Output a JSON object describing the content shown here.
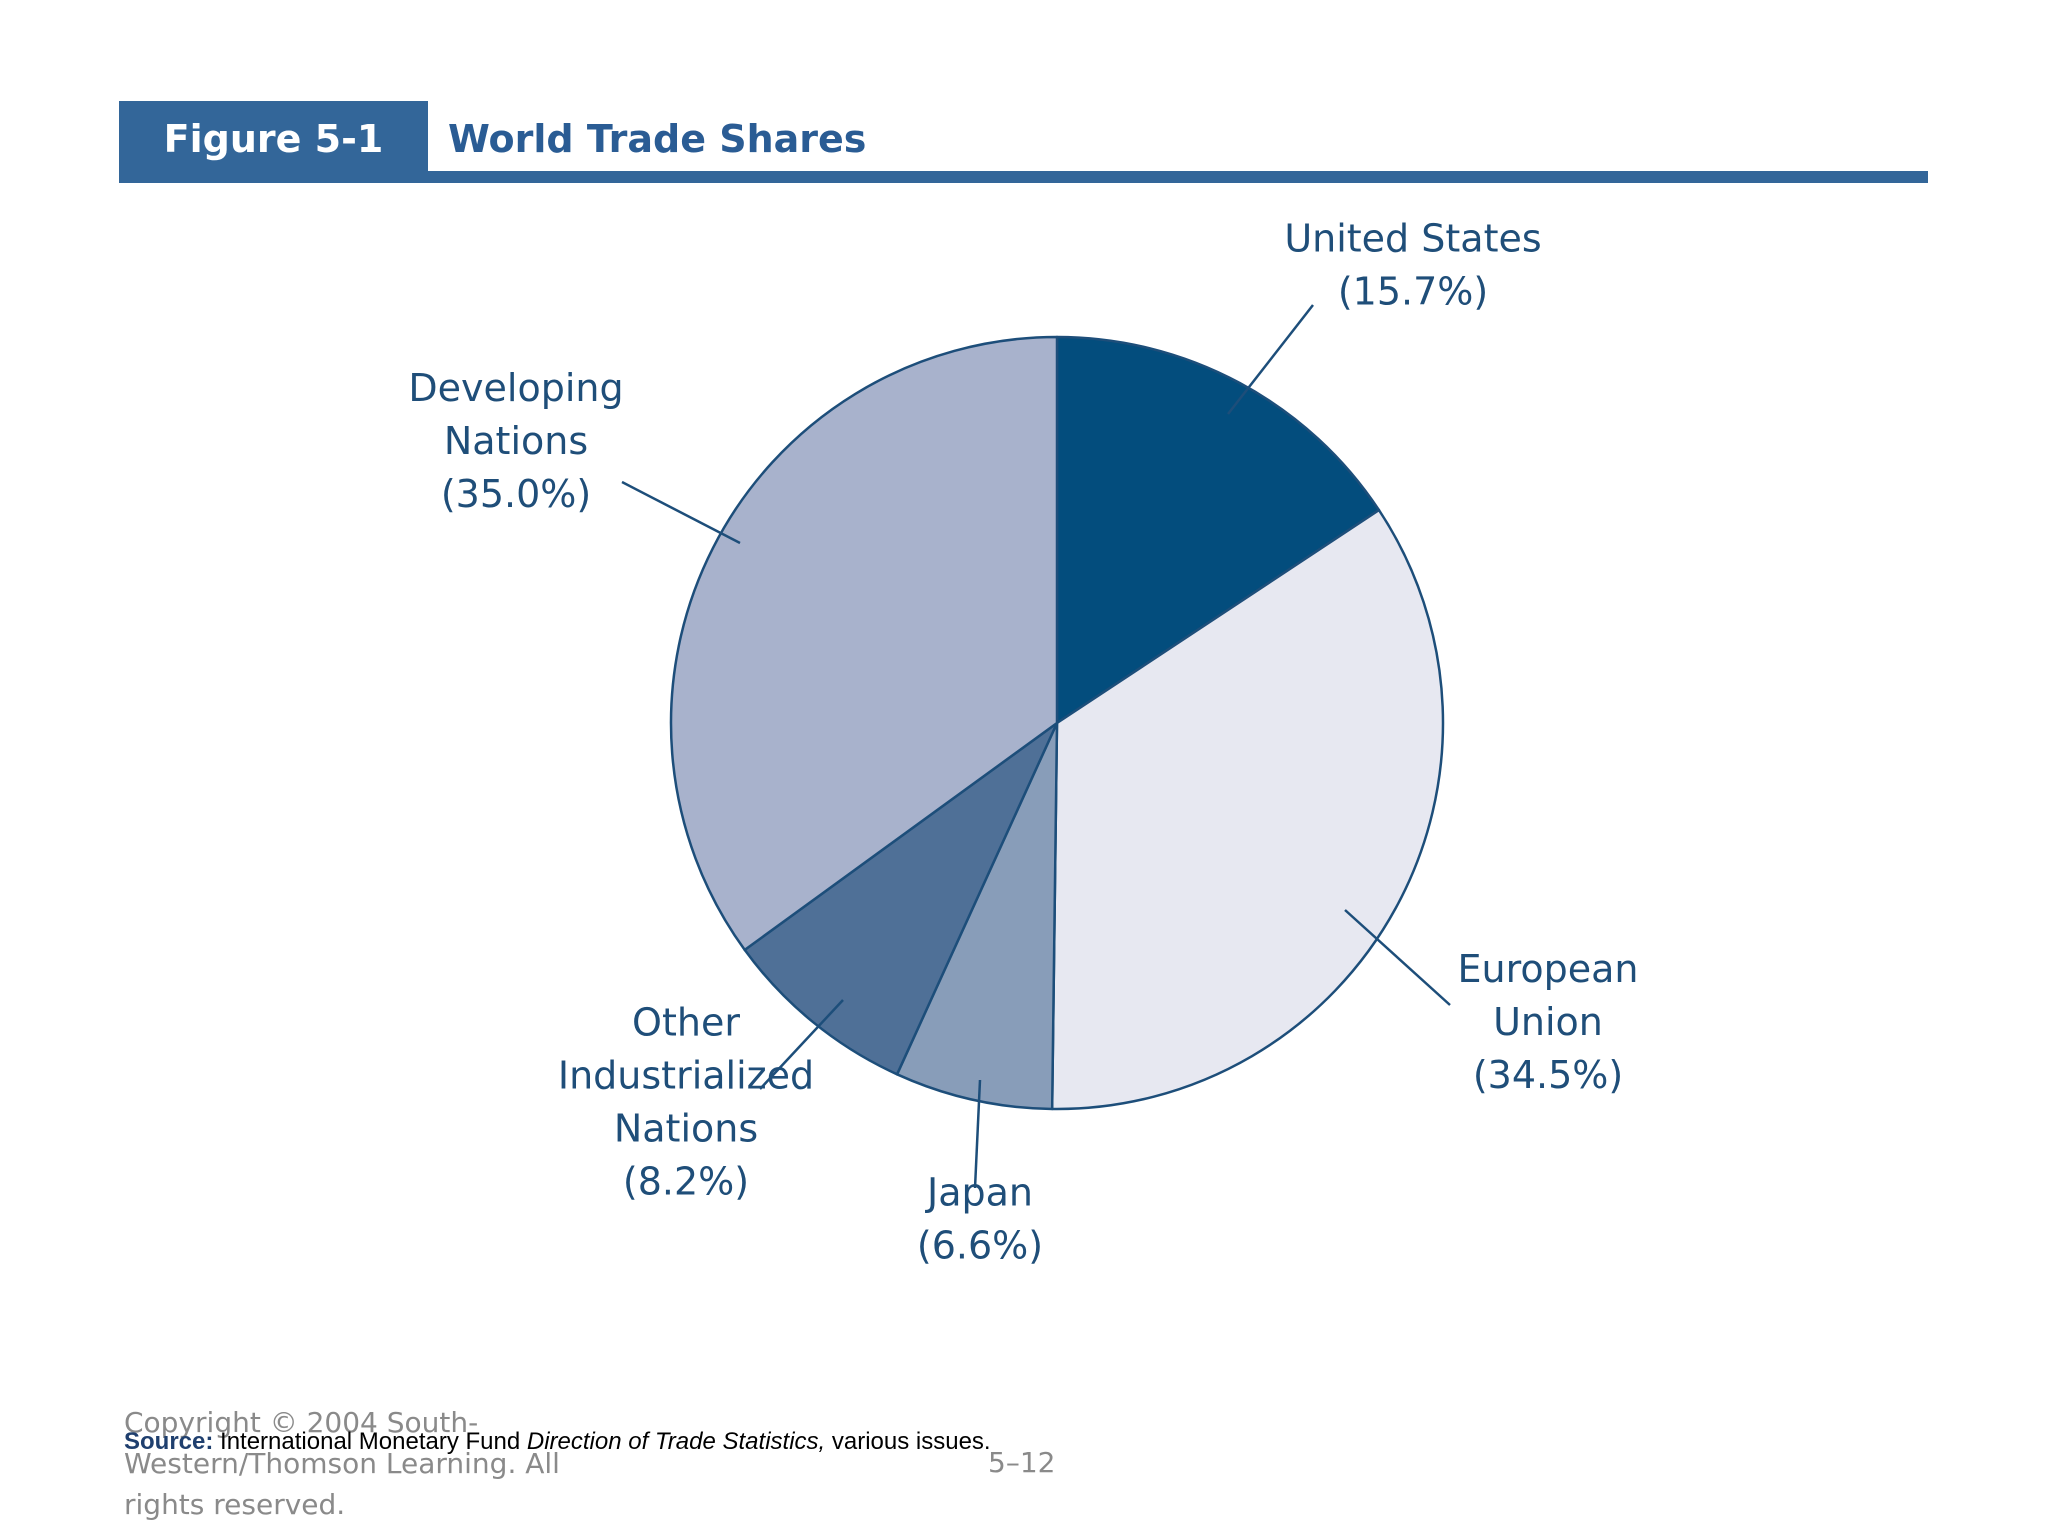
{
  "figure": {
    "label": "Figure 5-1",
    "title": "World Trade Shares"
  },
  "colors": {
    "header_bar": "#336699",
    "header_title": "#2a5c94",
    "slice_outline": "#1d4e7a",
    "label_text": "#1f4e79"
  },
  "chart_data": {
    "type": "pie",
    "title": "World Trade Shares",
    "slices": [
      {
        "name": "United States",
        "value": 15.7,
        "display": "(15.7%)",
        "color": "#034d7d",
        "label_lines": [
          "United States"
        ]
      },
      {
        "name": "European Union",
        "value": 34.5,
        "display": "(34.5%)",
        "color": "#e7e8f1",
        "label_lines": [
          "European",
          "Union"
        ]
      },
      {
        "name": "Japan",
        "value": 6.6,
        "display": "(6.6%)",
        "color": "#889db9",
        "label_lines": [
          "Japan"
        ]
      },
      {
        "name": "Other Industrialized Nations",
        "value": 8.2,
        "display": "(8.2%)",
        "color": "#4f7097",
        "label_lines": [
          "Other",
          "Industrialized",
          "Nations"
        ]
      },
      {
        "name": "Developing Nations",
        "value": 35.0,
        "display": "(35.0%)",
        "color": "#a8b2cc",
        "label_lines": [
          "Developing",
          "Nations"
        ]
      }
    ]
  },
  "source": {
    "label": "Source:",
    "text_before": " International Monetary Fund ",
    "title": "Direction of Trade Statistics,",
    "text_after": " various issues."
  },
  "footer": {
    "copyright": "Copyright © 2004 South-Western/Thomson Learning. All rights reserved.",
    "page": "5–12"
  }
}
